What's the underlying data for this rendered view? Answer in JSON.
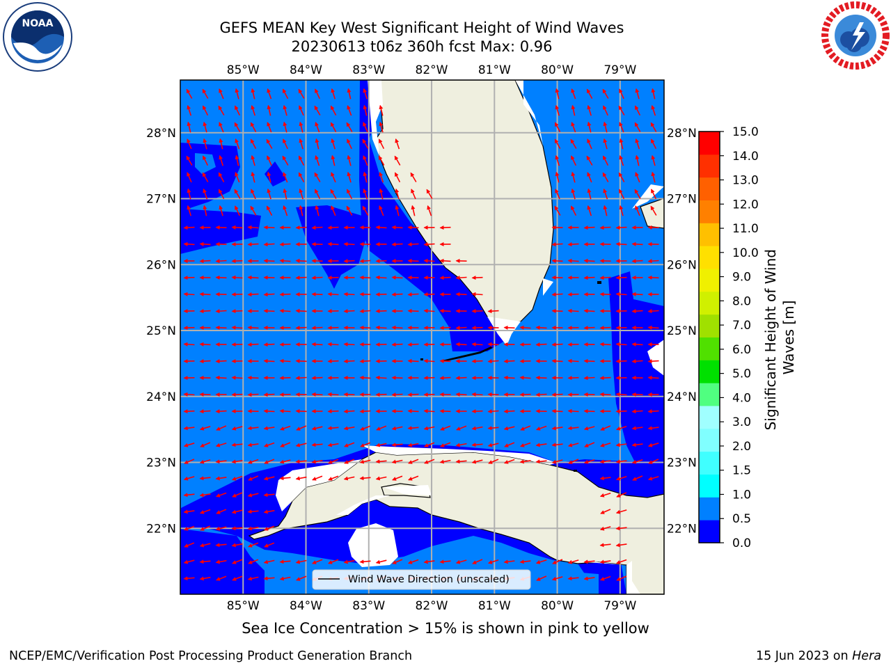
{
  "title": {
    "line1": "GEFS MEAN Key West Significant Height of Wind Waves",
    "line2": "20230613 t06z 360h fcst   Max: 0.96"
  },
  "ice_note": "Sea Ice Concentration > 15% is shown in pink to yellow",
  "footer": {
    "left": "NCEP/EMC/Verification Post Processing Product Generation Branch",
    "date": "15 Jun 2023 on ",
    "machine": "Hera"
  },
  "logos": {
    "noaa_text": "NOAA",
    "noaa_ring_text": "NATIONAL OCEANIC AND ATMOSPHERIC ADMINISTRATION · U.S. DEPARTMENT OF COMMERCE",
    "nws_ring_text": "NATIONAL WEATHER SERVICE"
  },
  "map": {
    "lon_range": [
      -86,
      -78.3
    ],
    "lat_range": [
      21.0,
      28.8
    ],
    "lon_ticks": [
      "85°W",
      "84°W",
      "83°W",
      "82°W",
      "81°W",
      "80°W",
      "79°W"
    ],
    "lat_ticks": [
      "22°N",
      "23°N",
      "24°N",
      "25°N",
      "26°N",
      "27°N",
      "28°N"
    ],
    "gridlines": true,
    "colors": {
      "ocean_background": "#0080ff",
      "low_waves": "#0000ff",
      "land": "#efefdf",
      "coast": "#000000",
      "arrows": "#ff0000",
      "gridlines": "#b0b0b0"
    },
    "legend": {
      "label": "Wind Wave Direction (unscaled)",
      "placement": "lower-center"
    }
  },
  "colorbar": {
    "label": "Significant Height of Wind Waves [m]",
    "tick_labels": [
      "0.0",
      "0.5",
      "1.0",
      "1.5",
      "2.0",
      "3.0",
      "4.0",
      "5.0",
      "6.0",
      "7.0",
      "8.0",
      "9.0",
      "10.0",
      "11.0",
      "12.0",
      "13.0",
      "14.0",
      "15.0"
    ],
    "colors": [
      "#0000ff",
      "#0080ff",
      "#00ffff",
      "#40ffff",
      "#80ffff",
      "#a0ffff",
      "#50ff80",
      "#00e000",
      "#50e000",
      "#a0e000",
      "#d0f000",
      "#f0f000",
      "#ffe000",
      "#ffc000",
      "#ff8000",
      "#ff6000",
      "#ff3000",
      "#ff0000"
    ]
  }
}
